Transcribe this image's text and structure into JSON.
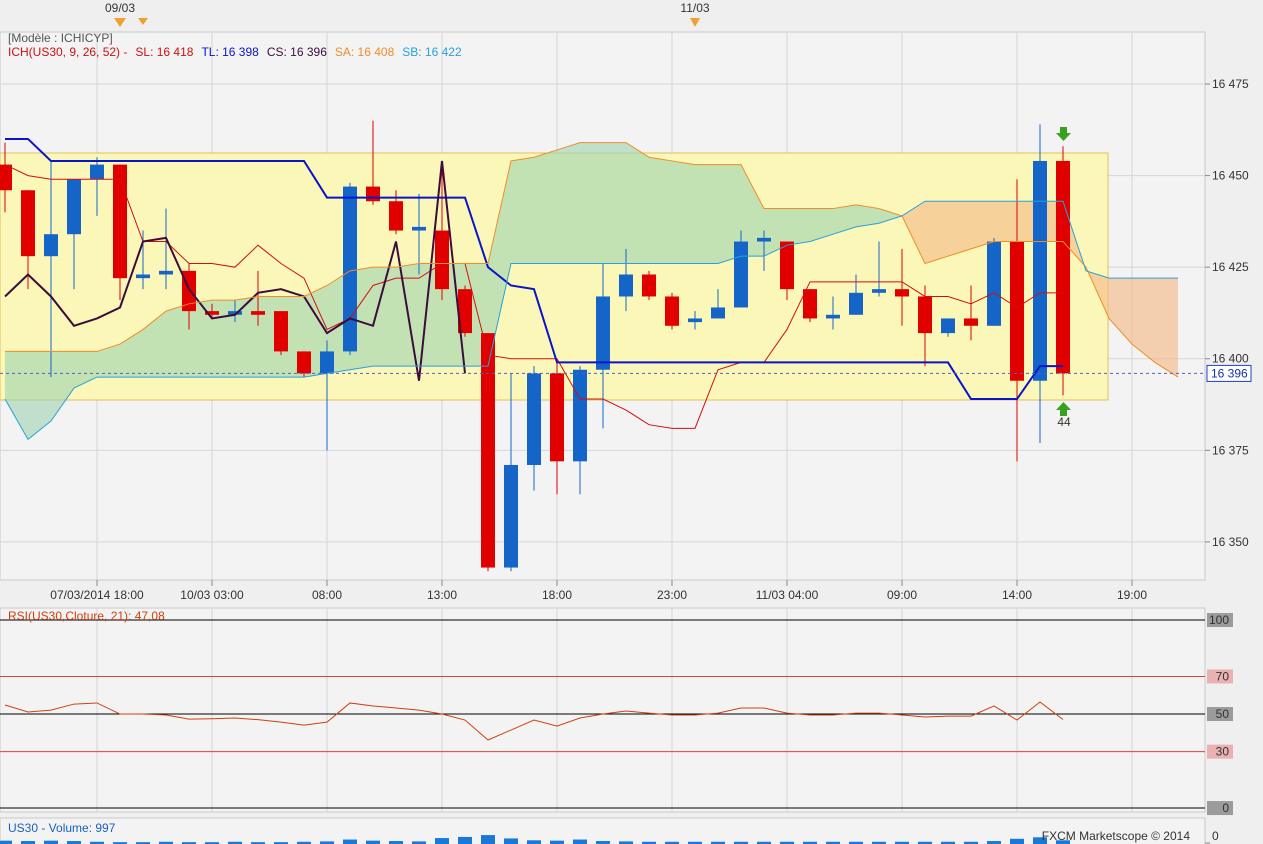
{
  "header": {
    "model": "[Modèle : ICHICYP]",
    "indicator": "ICH(US30, 9, 26, 52) -",
    "top_labels": [
      "09/03",
      "11/03"
    ],
    "annotation": "44",
    "footer": "FXCM Marketscope © 2014"
  },
  "chart_data": [
    {
      "type": "candlestick",
      "categories": [
        null,
        null,
        null,
        null,
        "07/03/2014 18:00",
        null,
        null,
        null,
        null,
        "10/03 03:00",
        null,
        null,
        null,
        null,
        "08:00",
        null,
        null,
        null,
        null,
        "13:00",
        null,
        null,
        null,
        null,
        "18:00",
        null,
        null,
        null,
        null,
        "23:00",
        null,
        null,
        null,
        null,
        "11/03 04:00",
        null,
        null,
        null,
        null,
        "09:00",
        null,
        null,
        null,
        null,
        "14:00",
        null,
        null,
        null,
        null,
        "19:00",
        null,
        null
      ],
      "open": [
        16453,
        16446,
        16428,
        16434,
        16449,
        16453,
        16422,
        16423,
        16424,
        16413,
        16412,
        16413,
        16413,
        16402,
        16396,
        16402,
        16447,
        16443,
        16435,
        16435,
        16419,
        16407,
        16343,
        16371,
        16396,
        16372,
        16397,
        16417,
        16423,
        16417,
        16410,
        16411,
        16414,
        16432,
        16432,
        16419,
        16411,
        16412,
        16418,
        16419,
        16417,
        16407,
        16411,
        16409,
        16432,
        16394,
        16454,
        null,
        null,
        null,
        null,
        null
      ],
      "high": [
        16459,
        16446,
        16454,
        16449,
        16455,
        16453,
        16435,
        16441,
        16426,
        16415,
        16416,
        16424,
        16413,
        16402,
        16405,
        16448,
        16465,
        16446,
        16445,
        16454,
        16420,
        16407,
        16396,
        16398,
        16400,
        16398,
        16426,
        16430,
        16424,
        16418,
        16413,
        16419,
        16435,
        16435,
        16432,
        16419,
        16417,
        16423,
        16432,
        16430,
        16420,
        16411,
        16420,
        16433,
        16449,
        16464,
        16458,
        null,
        null,
        null,
        null,
        null
      ],
      "low": [
        16440,
        16419,
        16395,
        16419,
        16439,
        16416,
        16419,
        16419,
        16408,
        16411,
        16410,
        16409,
        16401,
        16395,
        16375,
        16401,
        16442,
        16434,
        16423,
        16416,
        16406,
        16342,
        16342,
        16364,
        16363,
        16363,
        16381,
        16413,
        16416,
        16408,
        16408,
        16411,
        16414,
        16424,
        16416,
        16410,
        16408,
        16412,
        16417,
        16409,
        16398,
        16406,
        16405,
        16409,
        16372,
        16377,
        16390,
        null,
        null,
        null,
        null,
        null
      ],
      "close": [
        16446,
        16428,
        16434,
        16449,
        16453,
        16422,
        16423,
        16424,
        16413,
        16412,
        16413,
        16412,
        16402,
        16396,
        16402,
        16447,
        16443,
        16435,
        16436,
        16419,
        16407,
        16343,
        16371,
        16396,
        16372,
        16397,
        16417,
        16423,
        16417,
        16409,
        16411,
        16414,
        16432,
        16433,
        16419,
        16411,
        16412,
        16418,
        16419,
        16417,
        16407,
        16411,
        16409,
        16432,
        16394,
        16454,
        16396,
        null,
        null,
        null,
        null,
        null
      ],
      "up_color": "#1565c8",
      "down_color": "#e00000",
      "lines": [
        {
          "name": "SL: 16 418",
          "color": "#d01010",
          "width": 1,
          "values": [
            16453,
            16450,
            16449,
            16449,
            16449,
            16449,
            16432,
            16432,
            16426,
            16426,
            16425,
            16431,
            16426,
            16422,
            16408,
            16411,
            16420,
            16422,
            16422,
            16426,
            16426,
            16401,
            16400,
            16400,
            16400,
            16389,
            16389,
            16386,
            16382,
            16381,
            16381,
            16397,
            16399,
            16399,
            16408,
            16421,
            16421,
            16421,
            16421,
            16421,
            16417,
            16417,
            16415,
            16418,
            16414,
            16418,
            16418,
            null,
            null,
            null,
            null,
            null
          ]
        },
        {
          "name": "TL: 16 398",
          "color": "#0a14c8",
          "width": 2,
          "values": [
            16460,
            16460,
            16454,
            16454,
            16454,
            16454,
            16454,
            16454,
            16454,
            16454,
            16454,
            16454,
            16454,
            16454,
            16444,
            16444,
            16444,
            16444,
            16444,
            16444,
            16444,
            16425,
            16420,
            16419,
            16399,
            16399,
            16399,
            16399,
            16399,
            16399,
            16399,
            16399,
            16399,
            16399,
            16399,
            16399,
            16399,
            16399,
            16399,
            16399,
            16399,
            16399,
            16389,
            16389,
            16389,
            16398,
            16398,
            null,
            null,
            null,
            null,
            null
          ]
        },
        {
          "name": "CS: 16 396",
          "color": "#3c0c3c",
          "width": 2,
          "values": [
            16417,
            16423,
            16417,
            16409,
            16411,
            16414,
            16432,
            16433,
            16419,
            16411,
            16412,
            16418,
            16419,
            16417,
            16407,
            16411,
            16409,
            16432,
            16394,
            16454,
            16396,
            null,
            null,
            null,
            null,
            null,
            null,
            null,
            null,
            null,
            null,
            null,
            null,
            null,
            null,
            null,
            null,
            null,
            null,
            null,
            null,
            null,
            null,
            null,
            null,
            null,
            null,
            null,
            null,
            null,
            null,
            null
          ]
        },
        {
          "name": "SA: 16 408",
          "color": "#f08c28",
          "width": 1,
          "values": [
            16402,
            16402,
            16402,
            16402,
            16402,
            16404,
            16408,
            16413,
            16415,
            16416,
            16416,
            16417,
            16417,
            16417,
            16420,
            16424,
            16425,
            16425,
            16426,
            16426,
            16426,
            16426,
            16454,
            16455,
            16457,
            16459,
            16459,
            16459,
            16455,
            16454,
            16453,
            16453,
            16453,
            16441,
            16441,
            16441,
            16441,
            16442,
            16441,
            16439,
            16426,
            16428,
            16430,
            16432,
            16432,
            16432,
            16432,
            16425,
            16411,
            16404,
            16399,
            16395
          ]
        },
        {
          "name": "SB: 16 422",
          "color": "#2aa0dc",
          "width": 1,
          "values": [
            16389,
            16378,
            16383,
            16392,
            16395,
            16395,
            16395,
            16395,
            16395,
            16395,
            16395,
            16395,
            16395,
            16395,
            16396,
            16397,
            16398,
            16398,
            16398,
            16398,
            16398,
            16398,
            16426,
            16426,
            16426,
            16426,
            16426,
            16426,
            16426,
            16426,
            16426,
            16426,
            16428,
            16428,
            16431,
            16432,
            16434,
            16436,
            16437,
            16439,
            16443,
            16443,
            16443,
            16443,
            16443,
            16443,
            16443,
            16424,
            16422,
            16422,
            16422,
            16422
          ]
        }
      ],
      "cloud_colors": {
        "up": "#9fd4b0",
        "down": "#f4b884"
      },
      "ylim": [
        16339.6,
        16489.2
      ],
      "yticks": [
        {
          "value": 16350,
          "label": "16 350"
        },
        {
          "value": 16375,
          "label": "16 375"
        },
        {
          "value": 16400,
          "label": "16 400"
        },
        {
          "value": 16425,
          "label": "16 425"
        },
        {
          "value": 16450,
          "label": "16 450"
        },
        {
          "value": 16475,
          "label": "16 475"
        }
      ],
      "grid": true,
      "current_price": {
        "value": 16396,
        "label": "16 396"
      }
    },
    {
      "type": "line",
      "title": "RSI(US30,Cloture, 21): 47,08",
      "color": "#d04010",
      "values": [
        54.8,
        51.1,
        52.1,
        55.3,
        55.9,
        50.0,
        50.0,
        49.5,
        47.3,
        47.5,
        47.9,
        47.0,
        45.7,
        44.1,
        45.7,
        55.9,
        54.3,
        53.2,
        52.1,
        50.0,
        46.8,
        36.2,
        41.5,
        46.8,
        43.6,
        47.9,
        50.0,
        51.6,
        50.5,
        49.5,
        49.5,
        50.5,
        53.2,
        53.2,
        50.5,
        49.5,
        49.5,
        50.5,
        50.5,
        49.5,
        48.4,
        48.9,
        48.9,
        54.3,
        46.8,
        56.4,
        47.1,
        null,
        null,
        null,
        null,
        null
      ],
      "ylim": [
        -2.1,
        106.4
      ],
      "yticks": [
        0,
        30,
        50,
        70,
        100
      ],
      "tick_line_colors": [
        "#000000",
        "#e04040",
        "#000000",
        "#e04040",
        "#000000"
      ]
    },
    {
      "type": "bar",
      "title": "US30 - Volume: 997",
      "color": "#1a78d8",
      "values": [
        900,
        800,
        900,
        800,
        600,
        500,
        500,
        600,
        500,
        500,
        600,
        500,
        500,
        600,
        700,
        1200,
        900,
        800,
        700,
        1600,
        1900,
        2400,
        1500,
        1000,
        900,
        1200,
        800,
        700,
        600,
        600,
        600,
        600,
        600,
        600,
        600,
        600,
        600,
        600,
        600,
        600,
        600,
        600,
        600,
        800,
        1400,
        1800,
        997,
        null,
        null,
        null,
        null,
        null
      ],
      "ylim": [
        0,
        7000
      ],
      "yticks": [
        0
      ]
    }
  ]
}
